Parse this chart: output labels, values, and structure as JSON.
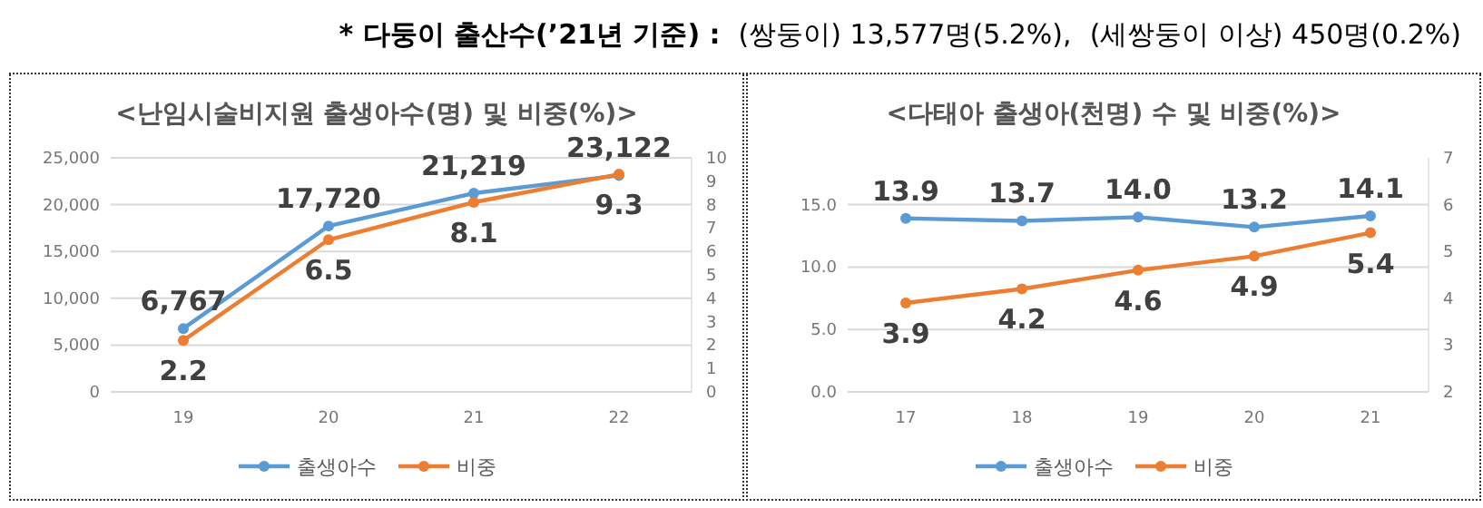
{
  "chart_data": [
    {
      "type": "other",
      "annotations": [
        "* 다둥이 출산수(’21년 기준) :",
        "(쌍둥이) 13,577명(5.2%),",
        "(세쌍둥이 이상) 450명(0.2%)"
      ]
    },
    {
      "type": "line",
      "title": "<난임시술비지원 출생아수(명) 및 비중(%)>",
      "categories": [
        "19",
        "20",
        "21",
        "22"
      ],
      "series": [
        {
          "name": "출생아수",
          "color": "#5b9bd5",
          "values": [
            6767,
            17720,
            21219,
            23122
          ],
          "value_labels": [
            "6,767",
            "17,720",
            "21,219",
            "23,122"
          ]
        },
        {
          "name": "비중",
          "color": "#ed7d31",
          "axis": "y2",
          "values": [
            2.2,
            6.5,
            8.1,
            9.3
          ],
          "value_labels": [
            "2.2",
            "6.5",
            "8.1",
            "9.3"
          ]
        }
      ],
      "ylim": [
        0,
        25000
      ],
      "yticks": [
        0,
        {
          "value": 5000,
          "label": "5,000"
        },
        {
          "value": 10000,
          "label": "10,000"
        },
        {
          "value": 15000,
          "label": "15,000"
        },
        {
          "value": 20000,
          "label": "20,000"
        },
        {
          "value": 25000,
          "label": "25,000"
        }
      ],
      "y2lim": [
        0,
        10
      ],
      "y2ticks": [
        0,
        1,
        2,
        3,
        4,
        5,
        6,
        7,
        8,
        9,
        10
      ],
      "grid": "y",
      "legend": "bottom",
      "marker": "circle",
      "line_style": "solid"
    },
    {
      "type": "line",
      "title": "<다태아 출생아(천명) 수 및 비중(%)>",
      "categories": [
        "17",
        "18",
        "19",
        "20",
        "21"
      ],
      "series": [
        {
          "name": "출생아수",
          "color": "#5b9bd5",
          "values": [
            13.9,
            13.7,
            14.0,
            13.2,
            14.1
          ],
          "value_labels": [
            "13.9",
            "13.7",
            "14.0",
            "13.2",
            "14.1"
          ]
        },
        {
          "name": "비중",
          "color": "#ed7d31",
          "axis": "y2",
          "values": [
            3.9,
            4.2,
            4.6,
            4.9,
            5.4
          ],
          "value_labels": [
            "3.9",
            "4.2",
            "4.6",
            "4.9",
            "5.4"
          ]
        }
      ],
      "ylim": [
        0,
        18.75
      ],
      "yticks": [
        {
          "value": 0,
          "label": "0.0"
        },
        {
          "value": 5,
          "label": "5.0"
        },
        {
          "value": 10,
          "label": "10.0"
        },
        {
          "value": 15,
          "label": "15.0"
        }
      ],
      "y2lim": [
        2,
        7
      ],
      "y2ticks": [
        2,
        3,
        4,
        5,
        6,
        7
      ],
      "grid": "y",
      "legend": "bottom",
      "marker": "circle",
      "line_style": "solid"
    }
  ]
}
